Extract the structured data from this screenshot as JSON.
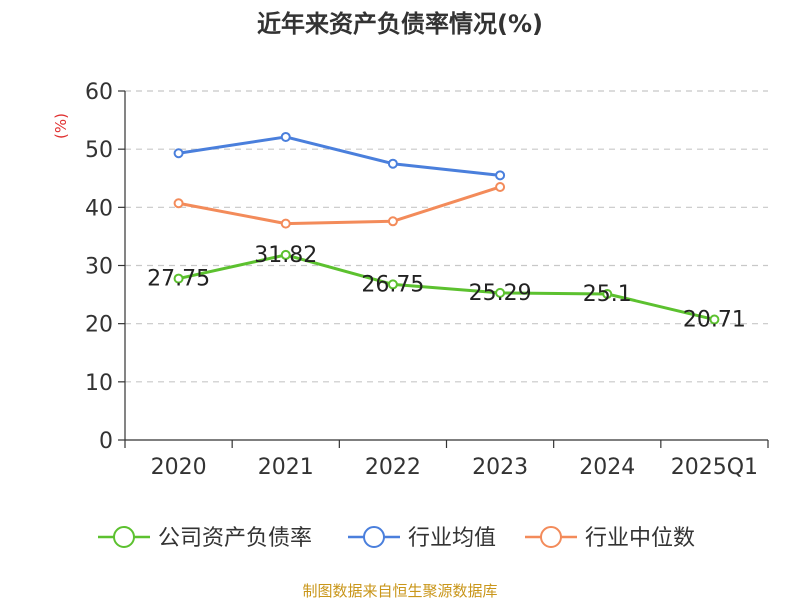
{
  "chart_data": {
    "type": "line",
    "title": "近年来资产负债率情况(%)",
    "ylabel": "(%)",
    "xlabel": "",
    "categories": [
      "2020",
      "2021",
      "2022",
      "2023",
      "2024",
      "2025Q1"
    ],
    "ylim": [
      0,
      60
    ],
    "yticks": [
      0,
      10,
      20,
      30,
      40,
      50,
      60
    ],
    "grid": true,
    "legend_position": "bottom",
    "series": [
      {
        "name": "公司资产负债率",
        "color": "#5cc12f",
        "values": [
          27.75,
          31.82,
          26.75,
          25.29,
          25.1,
          20.71
        ],
        "labels": [
          "27.75",
          "31.82",
          "26.75",
          "25.29",
          "25.1",
          "20.71"
        ],
        "show_labels": true
      },
      {
        "name": "行业均值",
        "color": "#4a7fdc",
        "values": [
          49.3,
          52.1,
          47.5,
          45.5,
          null,
          null
        ],
        "show_labels": false
      },
      {
        "name": "行业中位数",
        "color": "#f38b5a",
        "values": [
          40.7,
          37.2,
          37.6,
          43.5,
          null,
          null
        ],
        "show_labels": false
      }
    ]
  },
  "source": "制图数据来自恒生聚源数据库"
}
